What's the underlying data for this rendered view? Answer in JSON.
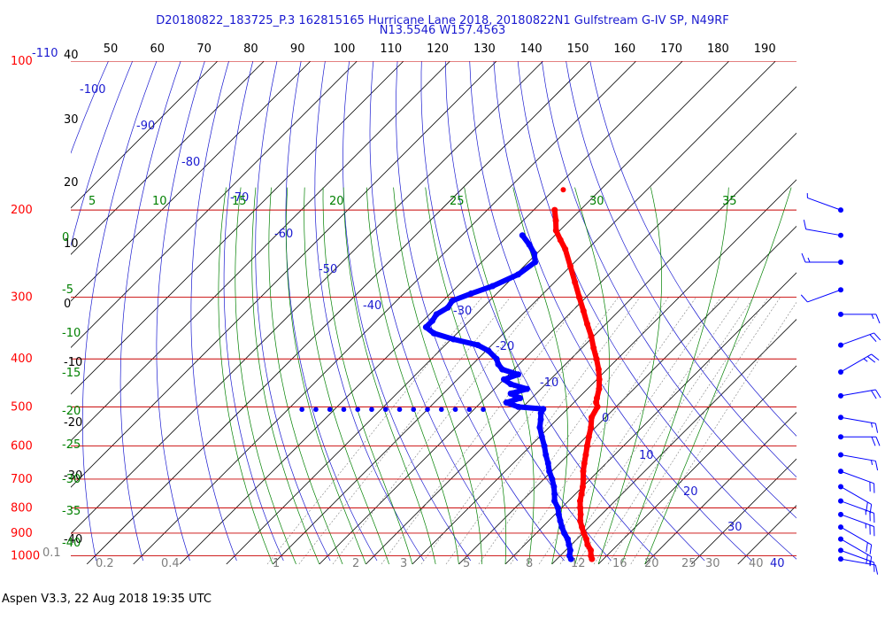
{
  "header": {
    "line1": "D20180822_183725_P.3 162815165 Hurricane Lane 2018, 20180822N1 Gulfstream G-IV SP, N49RF",
    "line2": "N13.5546 W157.4563"
  },
  "footer": {
    "text": "Aspen V3.3, 22 Aug 2018  19:35 UTC"
  },
  "colors": {
    "temperature": "#ff0000",
    "dewpoint": "#0000ff",
    "isobar": "#c80000",
    "isotherm": "#000000",
    "dry_adiabat": "#1a1ad0",
    "moist_adiabat": "#008000",
    "mixing_ratio": "#7f7f7f",
    "wind": "#0000ff"
  },
  "chart_data": {
    "type": "line",
    "title": "",
    "xlabel": "",
    "ylabel": "",
    "top_axis": {
      "ticks": [
        "50",
        "60",
        "70",
        "80",
        "90",
        "100",
        "110",
        "120",
        "130",
        "140",
        "150",
        "160",
        "170",
        "180",
        "190"
      ]
    },
    "pressure_levels": [
      {
        "p": "100",
        "label": "100"
      },
      {
        "p": "200",
        "label": "200"
      },
      {
        "p": "300",
        "label": "300"
      },
      {
        "p": "400",
        "label": "400"
      },
      {
        "p": "500",
        "label": "500"
      },
      {
        "p": "600",
        "label": "600"
      },
      {
        "p": "700",
        "label": "700"
      },
      {
        "p": "800",
        "label": "800"
      },
      {
        "p": "900",
        "label": "900"
      },
      {
        "p": "1000",
        "label": "1000"
      }
    ],
    "corner_labels": {
      "top_right_range": "-110",
      "bottom_left": "0.1"
    },
    "isotherm_labels": [
      "40",
      "30",
      "20",
      "10",
      "0",
      "-10",
      "-20",
      "-30",
      "-40"
    ],
    "dry_adiabat_labels": [
      "-100",
      "-90",
      "-80",
      "-70",
      "-60",
      "-50",
      "-40",
      "-30",
      "-20",
      "-10",
      "0",
      "10",
      "20",
      "30",
      "40"
    ],
    "moist_adiabat_top_labels": [
      "5",
      "10",
      "15",
      "20",
      "25",
      "30",
      "35"
    ],
    "moist_adiabat_left_labels": [
      "0",
      "-5",
      "-10",
      "-15",
      "-20",
      "-25",
      "-30",
      "-35",
      "-40"
    ],
    "mixing_ratio_labels": [
      "0.2",
      "0.4",
      "1",
      "2",
      "3",
      "5",
      "8",
      "12",
      "16",
      "20",
      "25",
      "30",
      "40"
    ],
    "series": [
      {
        "name": "Temperature",
        "color": "#ff0000",
        "points": [
          [
            1015,
            27.5
          ],
          [
            1000,
            26.6
          ],
          [
            975,
            25.4
          ],
          [
            950,
            23.5
          ],
          [
            925,
            22.0
          ],
          [
            900,
            20.2
          ],
          [
            875,
            18.5
          ],
          [
            850,
            16.8
          ],
          [
            825,
            15.5
          ],
          [
            800,
            14.0
          ],
          [
            775,
            12.5
          ],
          [
            750,
            11.3
          ],
          [
            725,
            10.0
          ],
          [
            700,
            8.5
          ],
          [
            675,
            6.8
          ],
          [
            650,
            5.3
          ],
          [
            625,
            3.8
          ],
          [
            600,
            2.2
          ],
          [
            575,
            0.6
          ],
          [
            550,
            -1.0
          ],
          [
            525,
            -3.0
          ],
          [
            500,
            -4.0
          ],
          [
            490,
            -5.2
          ],
          [
            480,
            -6.0
          ],
          [
            460,
            -7.5
          ],
          [
            440,
            -9.5
          ],
          [
            420,
            -11.8
          ],
          [
            400,
            -14.5
          ],
          [
            380,
            -17.5
          ],
          [
            360,
            -20.5
          ],
          [
            340,
            -24.0
          ],
          [
            320,
            -27.6
          ],
          [
            300,
            -31.5
          ],
          [
            280,
            -35.6
          ],
          [
            260,
            -40.0
          ],
          [
            240,
            -44.8
          ],
          [
            230,
            -47.8
          ],
          [
            220,
            -50.8
          ],
          [
            210,
            -53.0
          ],
          [
            200,
            -55.5
          ]
        ]
      },
      {
        "name": "Dewpoint",
        "color": "#0000ff",
        "points": [
          [
            1015,
            23.0
          ],
          [
            1000,
            22.0
          ],
          [
            975,
            21.0
          ],
          [
            950,
            19.5
          ],
          [
            925,
            18.0
          ],
          [
            900,
            16.0
          ],
          [
            875,
            14.2
          ],
          [
            850,
            12.5
          ],
          [
            825,
            10.8
          ],
          [
            800,
            9.2
          ],
          [
            775,
            7.0
          ],
          [
            750,
            5.5
          ],
          [
            725,
            3.8
          ],
          [
            700,
            1.8
          ],
          [
            675,
            -0.5
          ],
          [
            650,
            -2.5
          ],
          [
            625,
            -4.8
          ],
          [
            600,
            -7.0
          ],
          [
            575,
            -9.5
          ],
          [
            550,
            -12.0
          ],
          [
            530,
            -13.5
          ],
          [
            515,
            -14.8
          ],
          [
            505,
            -15.2
          ],
          [
            500,
            -21.0
          ],
          [
            490,
            -24.5
          ],
          [
            480,
            -22.5
          ],
          [
            470,
            -25.5
          ],
          [
            460,
            -23.0
          ],
          [
            450,
            -27.5
          ],
          [
            440,
            -30.0
          ],
          [
            430,
            -28.0
          ],
          [
            420,
            -32.5
          ],
          [
            410,
            -34.5
          ],
          [
            400,
            -36.0
          ],
          [
            385,
            -39.5
          ],
          [
            375,
            -43.0
          ],
          [
            365,
            -49.5
          ],
          [
            355,
            -55.0
          ],
          [
            345,
            -58.0
          ],
          [
            335,
            -58.0
          ],
          [
            325,
            -58.5
          ],
          [
            315,
            -57.5
          ],
          [
            305,
            -58.0
          ],
          [
            295,
            -55.5
          ],
          [
            285,
            -52.5
          ],
          [
            270,
            -49.5
          ],
          [
            255,
            -48.5
          ],
          [
            245,
            -50.5
          ],
          [
            235,
            -53.5
          ],
          [
            225,
            -57.0
          ]
        ]
      }
    ],
    "dewpoint_scatter": [
      [
        506,
        -67.0
      ],
      [
        506,
        -64.0
      ],
      [
        506,
        -61.0
      ],
      [
        506,
        -58.0
      ],
      [
        506,
        -55.0
      ],
      [
        506,
        -52.0
      ],
      [
        506,
        -49.0
      ],
      [
        506,
        -46.0
      ],
      [
        506,
        -43.0
      ],
      [
        506,
        -40.0
      ],
      [
        506,
        -37.0
      ],
      [
        506,
        -34.0
      ],
      [
        506,
        -31.0
      ],
      [
        506,
        -28.0
      ]
    ],
    "temp_scatter": [
      [
        182,
        -58.0
      ]
    ],
    "wind_barbs": [
      {
        "p": 1015,
        "dir": 100,
        "spd": 10
      },
      {
        "p": 975,
        "dir": 110,
        "spd": 15
      },
      {
        "p": 925,
        "dir": 120,
        "spd": 20
      },
      {
        "p": 875,
        "dir": 120,
        "spd": 20
      },
      {
        "p": 825,
        "dir": 110,
        "spd": 25
      },
      {
        "p": 775,
        "dir": 110,
        "spd": 25
      },
      {
        "p": 725,
        "dir": 120,
        "spd": 20
      },
      {
        "p": 675,
        "dir": 110,
        "spd": 20
      },
      {
        "p": 625,
        "dir": 100,
        "spd": 15
      },
      {
        "p": 575,
        "dir": 90,
        "spd": 20
      },
      {
        "p": 525,
        "dir": 100,
        "spd": 15
      },
      {
        "p": 475,
        "dir": 80,
        "spd": 20
      },
      {
        "p": 425,
        "dir": 60,
        "spd": 25
      },
      {
        "p": 375,
        "dir": 70,
        "spd": 20
      },
      {
        "p": 325,
        "dir": 90,
        "spd": 15
      },
      {
        "p": 290,
        "dir": 250,
        "spd": 10
      },
      {
        "p": 255,
        "dir": 270,
        "spd": 15
      },
      {
        "p": 225,
        "dir": 280,
        "spd": 10
      },
      {
        "p": 200,
        "dir": 290,
        "spd": 5
      }
    ]
  }
}
